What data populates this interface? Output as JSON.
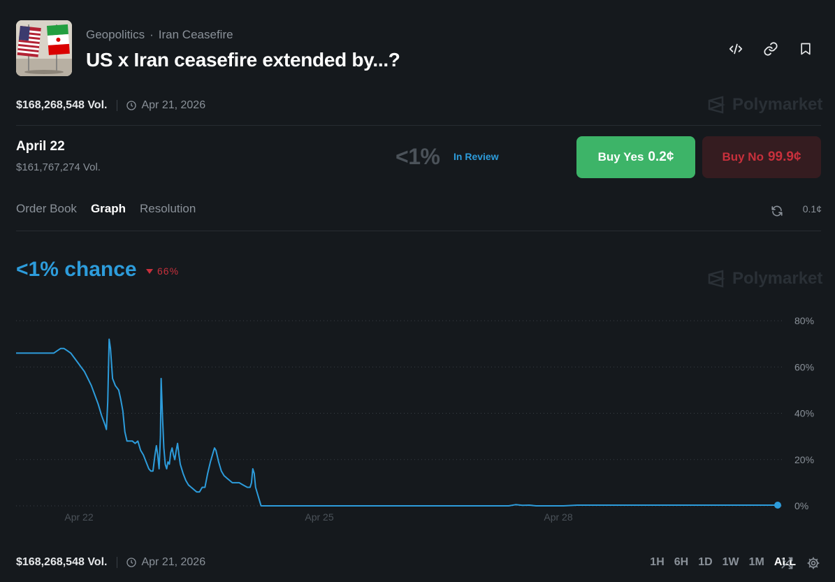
{
  "header": {
    "category": "Geopolitics",
    "separator": "·",
    "subcategory": "Iran Ceasefire",
    "title": "US x Iran ceasefire extended by...?",
    "thumbnail_icon": "us-iran-flags-image",
    "actions": [
      "embed-icon",
      "link-icon",
      "bookmark-icon"
    ]
  },
  "meta": {
    "volume": "$168,268,548 Vol.",
    "end_date": "Apr 21, 2026",
    "watermark": "Polymarket"
  },
  "outcome": {
    "name": "April 22",
    "volume": "$161,767,274 Vol.",
    "probability": "<1%",
    "status": "In Review",
    "buy_yes_label": "Buy Yes",
    "buy_yes_price": "0.2¢",
    "buy_no_label": "Buy No",
    "buy_no_price": "99.9¢"
  },
  "tabs": [
    {
      "label": "Order Book",
      "active": false
    },
    {
      "label": "Graph",
      "active": true
    },
    {
      "label": "Resolution",
      "active": false
    }
  ],
  "tick_size": "0.1¢",
  "graph": {
    "chance_label": "<1% chance",
    "change": "66%",
    "watermark": "Polymarket"
  },
  "chart_data": {
    "type": "line",
    "x_ticks": [
      "Apr 22",
      "Apr 25",
      "Apr 28"
    ],
    "y_ticks": [
      "80%",
      "60%",
      "40%",
      "20%",
      "0%"
    ],
    "ylim": [
      0,
      80
    ],
    "grid": true,
    "series": [
      {
        "color": "#2d9cdb",
        "points": [
          [
            0,
            66
          ],
          [
            10,
            66
          ],
          [
            20,
            66
          ],
          [
            30,
            66
          ],
          [
            40,
            66
          ],
          [
            50,
            66
          ],
          [
            55,
            66
          ],
          [
            60,
            67
          ],
          [
            65,
            68
          ],
          [
            70,
            68
          ],
          [
            75,
            67
          ],
          [
            80,
            66
          ],
          [
            85,
            64
          ],
          [
            90,
            62
          ],
          [
            95,
            60
          ],
          [
            100,
            58
          ],
          [
            105,
            55
          ],
          [
            110,
            52
          ],
          [
            115,
            48
          ],
          [
            120,
            44
          ],
          [
            125,
            39
          ],
          [
            130,
            35
          ],
          [
            132,
            33
          ],
          [
            134,
            45
          ],
          [
            136,
            72
          ],
          [
            138,
            68
          ],
          [
            141,
            55
          ],
          [
            145,
            52
          ],
          [
            150,
            50
          ],
          [
            153,
            46
          ],
          [
            156,
            41
          ],
          [
            159,
            32
          ],
          [
            162,
            28
          ],
          [
            166,
            28
          ],
          [
            170,
            28
          ],
          [
            174,
            27
          ],
          [
            178,
            28
          ],
          [
            182,
            24
          ],
          [
            186,
            22
          ],
          [
            190,
            19
          ],
          [
            194,
            16
          ],
          [
            197,
            15
          ],
          [
            200,
            15
          ],
          [
            203,
            22
          ],
          [
            205,
            26
          ],
          [
            207,
            22
          ],
          [
            209,
            16
          ],
          [
            211,
            30
          ],
          [
            212,
            55
          ],
          [
            214,
            38
          ],
          [
            216,
            25
          ],
          [
            218,
            18
          ],
          [
            220,
            16
          ],
          [
            222,
            19
          ],
          [
            224,
            18
          ],
          [
            226,
            23
          ],
          [
            228,
            25
          ],
          [
            230,
            22
          ],
          [
            232,
            20
          ],
          [
            234,
            24
          ],
          [
            236,
            27
          ],
          [
            238,
            22
          ],
          [
            240,
            18
          ],
          [
            244,
            14
          ],
          [
            248,
            11
          ],
          [
            252,
            9
          ],
          [
            256,
            8
          ],
          [
            260,
            7
          ],
          [
            264,
            6
          ],
          [
            268,
            6
          ],
          [
            272,
            8
          ],
          [
            276,
            8
          ],
          [
            280,
            14
          ],
          [
            284,
            19
          ],
          [
            288,
            23
          ],
          [
            290,
            25
          ],
          [
            292,
            24
          ],
          [
            296,
            19
          ],
          [
            300,
            15
          ],
          [
            304,
            13
          ],
          [
            308,
            12
          ],
          [
            312,
            11
          ],
          [
            316,
            10
          ],
          [
            320,
            10
          ],
          [
            326,
            10
          ],
          [
            332,
            9
          ],
          [
            338,
            8
          ],
          [
            342,
            8
          ],
          [
            344,
            10
          ],
          [
            346,
            16
          ],
          [
            348,
            14
          ],
          [
            350,
            8
          ],
          [
            354,
            4
          ],
          [
            358,
            0
          ],
          [
            400,
            0
          ],
          [
            500,
            0
          ],
          [
            600,
            0
          ],
          [
            700,
            0
          ],
          [
            720,
            0
          ],
          [
            730,
            0.5
          ],
          [
            740,
            0.2
          ],
          [
            750,
            0.3
          ],
          [
            760,
            0
          ],
          [
            800,
            0
          ],
          [
            820,
            0.3
          ],
          [
            900,
            0.3
          ],
          [
            1000,
            0.3
          ],
          [
            1100,
            0.3
          ],
          [
            1113,
            0.3
          ]
        ]
      }
    ]
  },
  "range_buttons": [
    {
      "label": "1H",
      "active": false
    },
    {
      "label": "6H",
      "active": false
    },
    {
      "label": "1D",
      "active": false
    },
    {
      "label": "1W",
      "active": false
    },
    {
      "label": "1M",
      "active": false
    },
    {
      "label": "ALL",
      "active": true
    }
  ],
  "footer_icons": [
    "shuffle-icon",
    "settings-icon"
  ]
}
